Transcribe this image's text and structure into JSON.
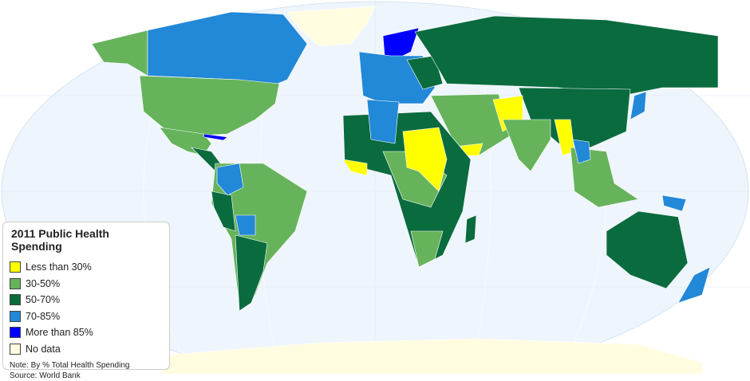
{
  "legend": {
    "title": "2011 Public Health Spending",
    "items": [
      {
        "label": "Less than 30%",
        "color": "#ffff00"
      },
      {
        "label": "30-50%",
        "color": "#66b35c"
      },
      {
        "label": "50-70%",
        "color": "#0a6b3f"
      },
      {
        "label": "70-85%",
        "color": "#2288d8"
      },
      {
        "label": "More than 85%",
        "color": "#0000ff"
      },
      {
        "label": "No data",
        "color": "#fffce0"
      }
    ],
    "note": "Note: By % Total Health Spending",
    "source": "Source: World Bank"
  },
  "ocean_color": "#eef5fc"
}
